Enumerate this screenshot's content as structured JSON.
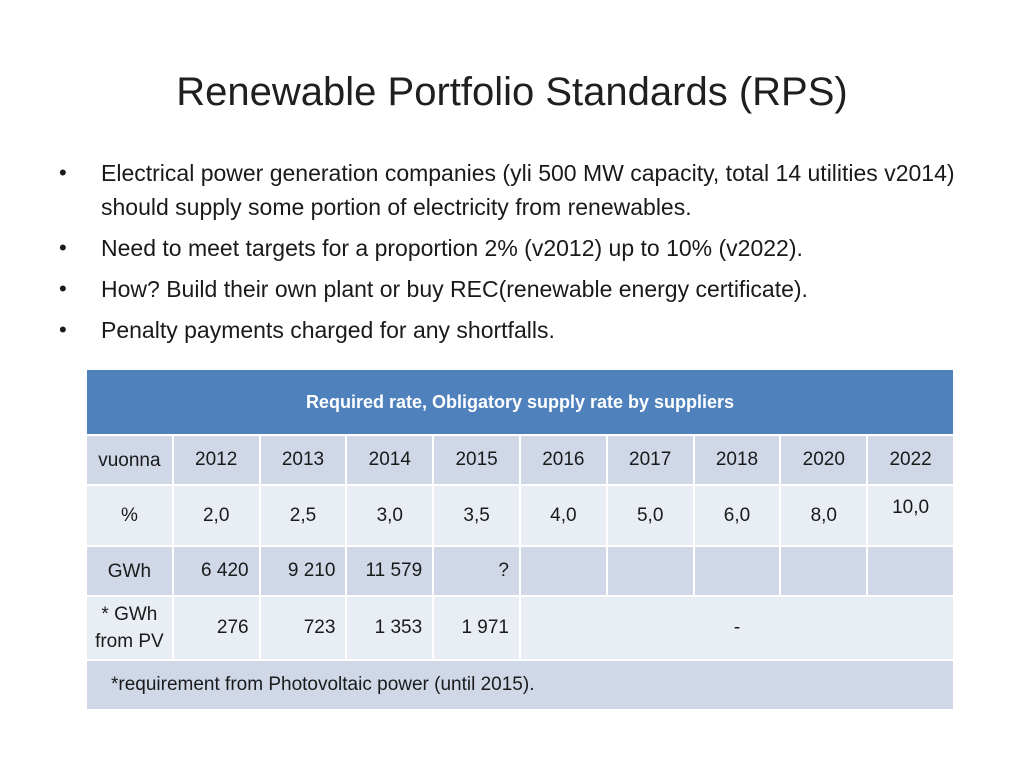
{
  "slide": {
    "title": "Renewable Portfolio Standards (RPS)",
    "bullet_glyph": "•",
    "bullets": [
      "Electrical power generation companies (yli 500 MW capacity, total 14 utilities v2014) should supply some portion of electricity from renewables.",
      "Need to meet targets for a proportion 2% (v2012) up to 10% (v2022).",
      "How? Build their own plant or buy REC(renewable energy certificate).",
      "Penalty payments charged for any shortfalls."
    ]
  },
  "table": {
    "header": "Required rate, Obligatory supply rate by suppliers",
    "year_label": "vuonna",
    "years": [
      "2012",
      "2013",
      "2014",
      "2015",
      "2016",
      "2017",
      "2018",
      "2020",
      "2022"
    ],
    "pct_label": "%",
    "pct": [
      "2,0",
      "2,5",
      "3,0",
      "3,5",
      "4,0",
      "5,0",
      "6,0",
      "8,0",
      "10,0"
    ],
    "gwh_label": "GWh",
    "gwh": [
      "6 420",
      "9 210",
      "11 579",
      "?"
    ],
    "pv_label_line1": "* GWh",
    "pv_label_line2": "from PV",
    "pv": [
      "276",
      "723",
      "1 353",
      "1 971"
    ],
    "pv_rest": "-",
    "footnote": "*requirement  from Photovoltaic power (until 2015)."
  },
  "colors": {
    "header_bg": "#4f81bd",
    "row_dark": "#d0d8e8",
    "row_light": "#e9edf4"
  }
}
